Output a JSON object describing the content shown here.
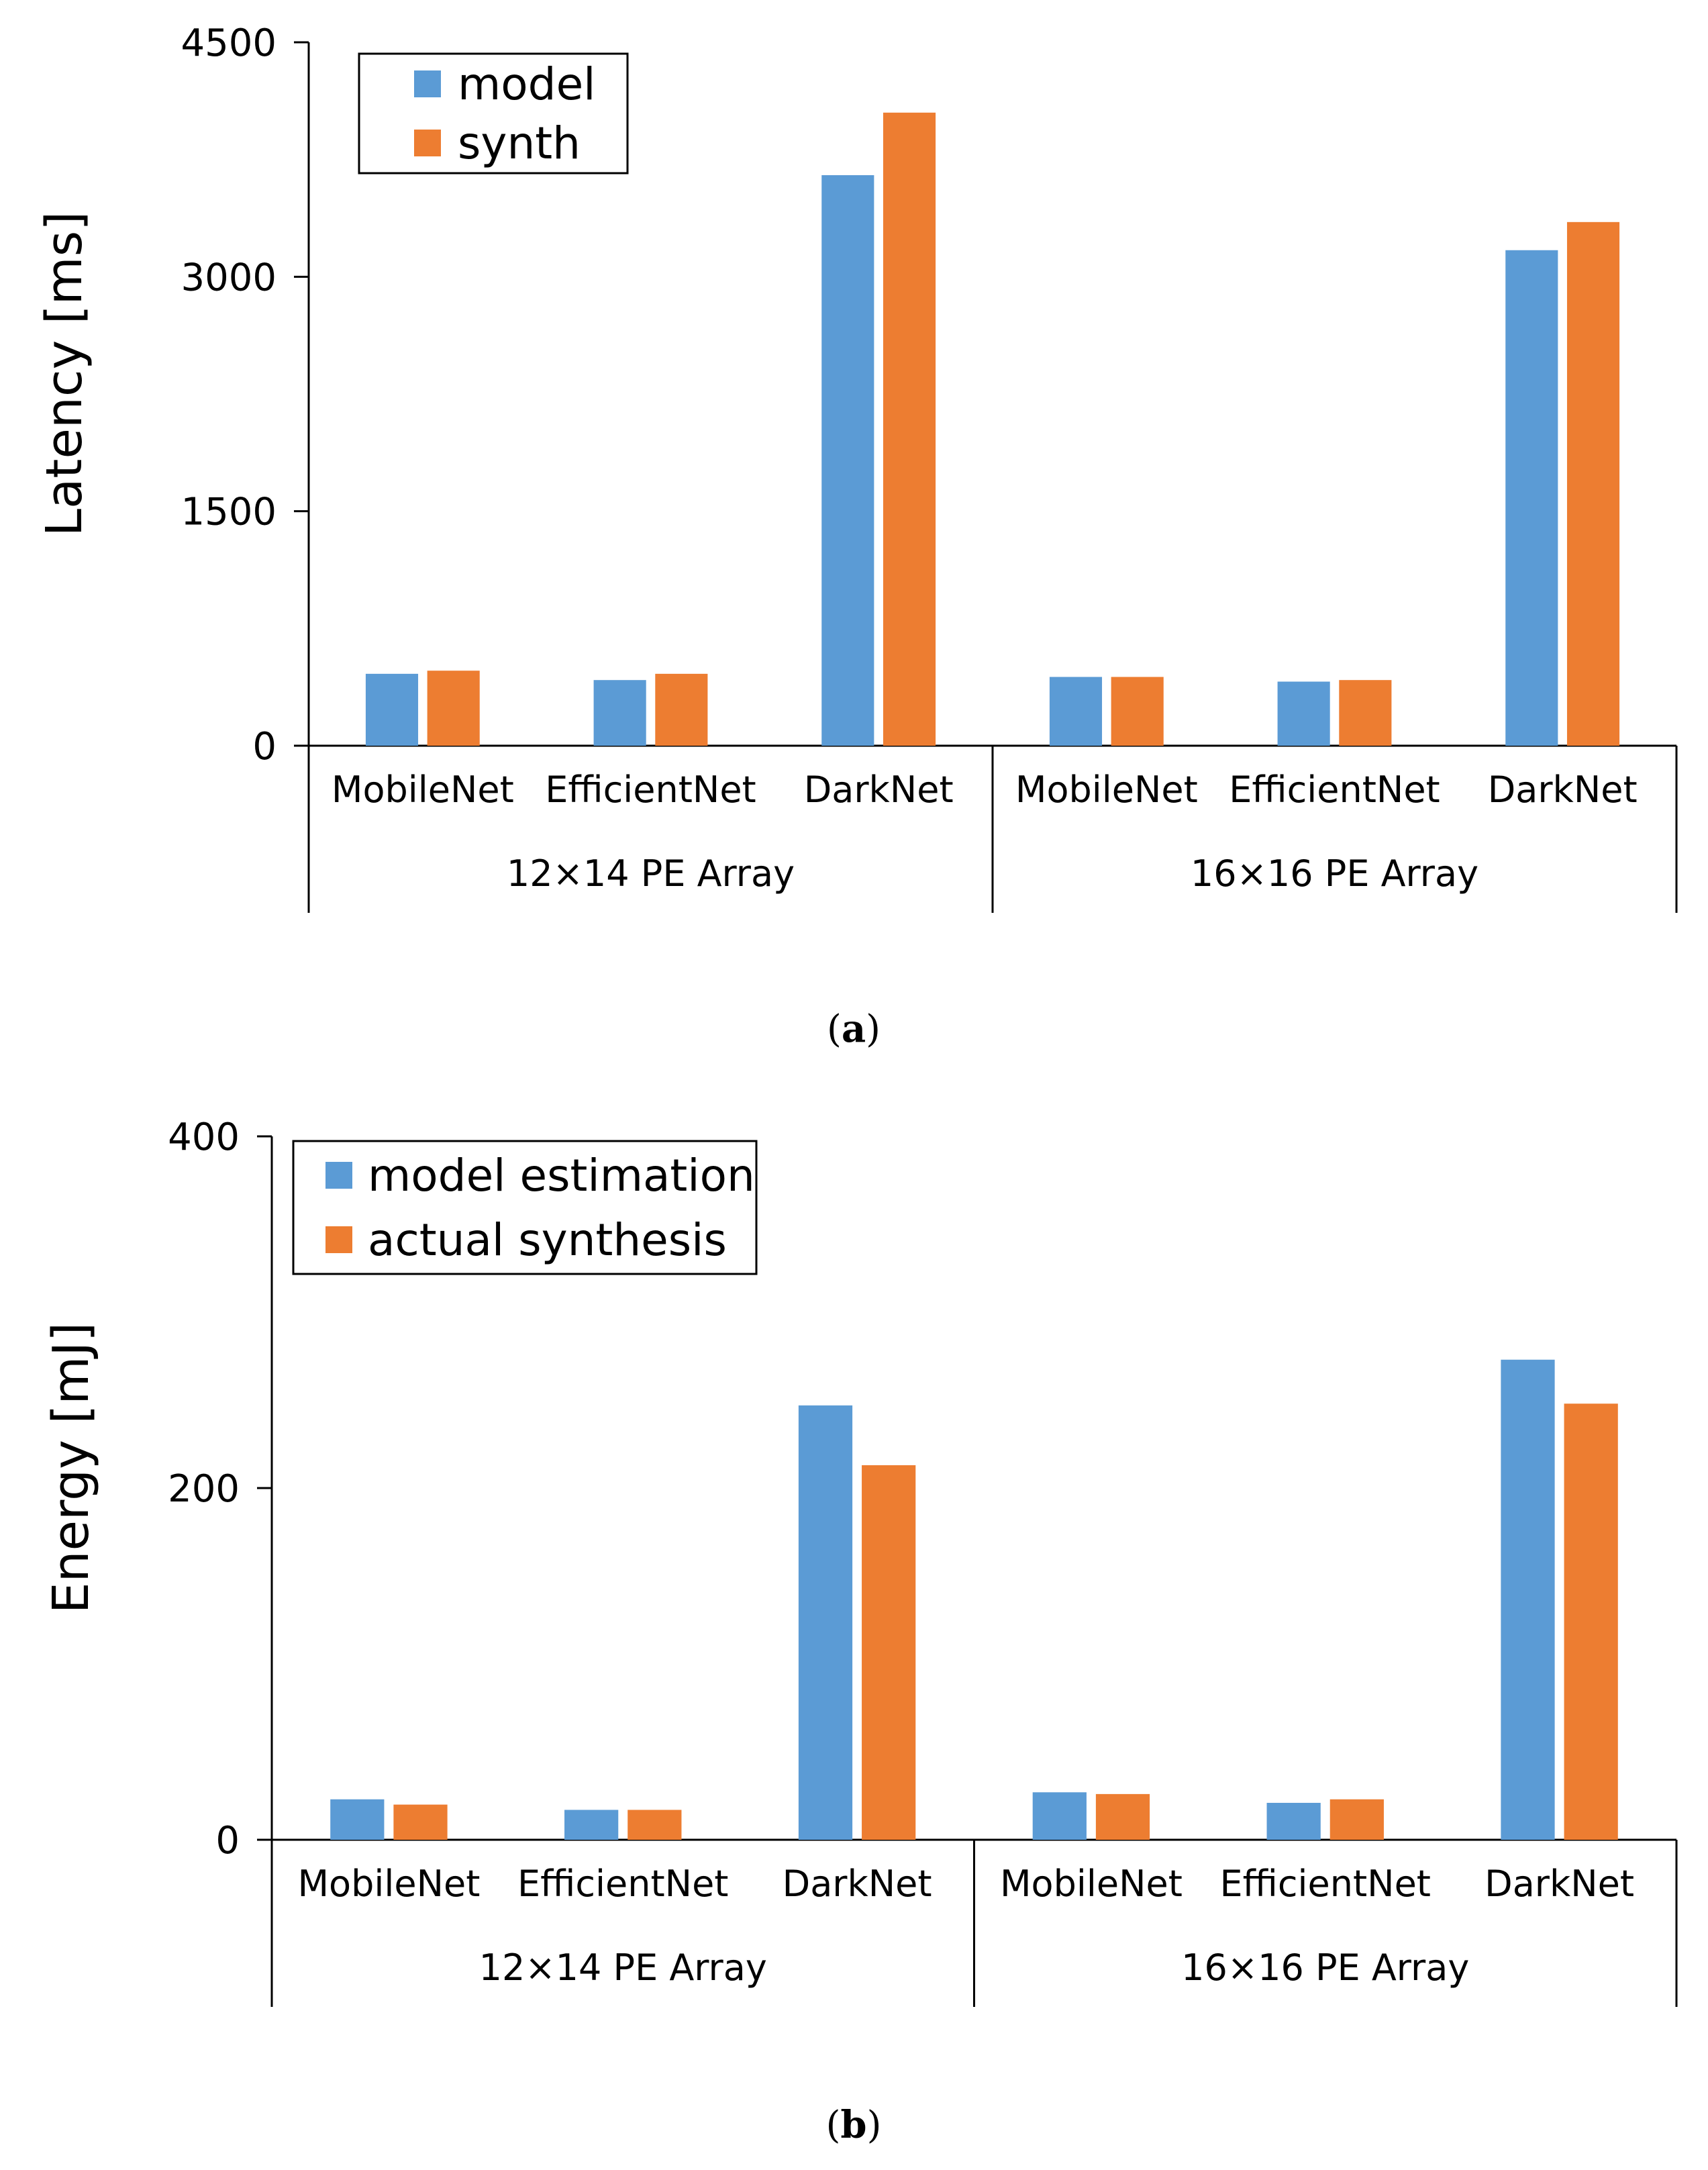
{
  "chart_data": [
    {
      "type": "bar",
      "caption": "a",
      "ylabel": "Latency [ms]",
      "ylim": [
        0,
        4500
      ],
      "yticks": [
        "0",
        "1500",
        "3000",
        "4500"
      ],
      "categories": [
        "MobileNet",
        "EfficientNet",
        "DarkNet",
        "MobileNet",
        "EfficientNet",
        "DarkNet"
      ],
      "groups": [
        {
          "label": "12×14 PE Array",
          "categories": [
            "MobileNet",
            "EfficientNet",
            "DarkNet"
          ]
        },
        {
          "label": "16×16 PE Array",
          "categories": [
            "MobileNet",
            "EfficientNet",
            "DarkNet"
          ]
        }
      ],
      "series": [
        {
          "name": "model",
          "color": "#5B9BD5",
          "values": [
            460,
            420,
            3650,
            440,
            410,
            3170
          ]
        },
        {
          "name": "synth",
          "color": "#ED7D31",
          "values": [
            480,
            460,
            4050,
            440,
            420,
            3350
          ]
        }
      ],
      "legend": "top-left"
    },
    {
      "type": "bar",
      "caption": "b",
      "ylabel": "Energy [mJ]",
      "ylim": [
        0,
        400
      ],
      "yticks": [
        "0",
        "200",
        "400"
      ],
      "categories": [
        "MobileNet",
        "EfficientNet",
        "DarkNet",
        "MobileNet",
        "EfficientNet",
        "DarkNet"
      ],
      "groups": [
        {
          "label": "12×14 PE Array",
          "categories": [
            "MobileNet",
            "EfficientNet",
            "DarkNet"
          ]
        },
        {
          "label": "16×16 PE Array",
          "categories": [
            "MobileNet",
            "EfficientNet",
            "DarkNet"
          ]
        }
      ],
      "series": [
        {
          "name": "model estimation",
          "color": "#5B9BD5",
          "values": [
            23,
            17,
            247,
            27,
            21,
            273
          ]
        },
        {
          "name": "actual synthesis",
          "color": "#ED7D31",
          "values": [
            20,
            17,
            213,
            26,
            23,
            248
          ]
        }
      ],
      "legend": "top-left"
    }
  ]
}
